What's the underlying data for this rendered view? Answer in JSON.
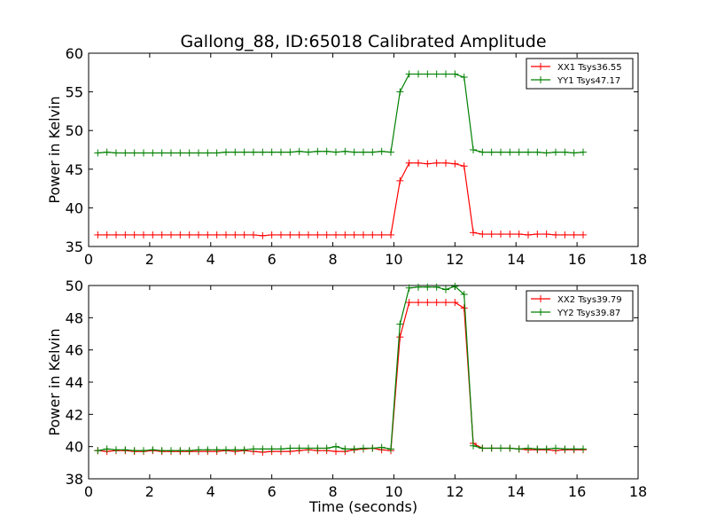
{
  "figure": {
    "title": "Gallong_88, ID:65018 Calibrated Amplitude"
  },
  "colors": {
    "red": "#ff0000",
    "green": "#008000",
    "axes": "#000000"
  },
  "chart_data": [
    {
      "type": "line",
      "title": "Gallong_88, ID:65018 Calibrated Amplitude",
      "xlabel": "",
      "ylabel": "Power in Kelvin",
      "xlim": [
        0,
        18
      ],
      "ylim": [
        35,
        60
      ],
      "xticks": [
        0,
        2,
        4,
        6,
        8,
        10,
        12,
        14,
        16,
        18
      ],
      "yticks": [
        35,
        40,
        45,
        50,
        55,
        60
      ],
      "legend": "top-right",
      "grid": false,
      "x": [
        0.3,
        0.6,
        0.9,
        1.2,
        1.5,
        1.8,
        2.1,
        2.4,
        2.7,
        3.0,
        3.3,
        3.6,
        3.9,
        4.2,
        4.5,
        4.8,
        5.1,
        5.4,
        5.7,
        6.0,
        6.3,
        6.6,
        6.9,
        7.2,
        7.5,
        7.8,
        8.1,
        8.4,
        8.7,
        9.0,
        9.3,
        9.6,
        9.9,
        10.2,
        10.5,
        10.8,
        11.1,
        11.4,
        11.7,
        12.0,
        12.3,
        12.6,
        12.9,
        13.2,
        13.5,
        13.8,
        14.1,
        14.4,
        14.7,
        15.0,
        15.3,
        15.6,
        15.9,
        16.2
      ],
      "series": [
        {
          "name": "XX1 Tsys36.55",
          "color": "#ff0000",
          "values": [
            36.5,
            36.5,
            36.5,
            36.5,
            36.5,
            36.5,
            36.5,
            36.5,
            36.5,
            36.5,
            36.5,
            36.5,
            36.5,
            36.5,
            36.5,
            36.5,
            36.5,
            36.5,
            36.4,
            36.5,
            36.5,
            36.5,
            36.5,
            36.5,
            36.5,
            36.5,
            36.5,
            36.5,
            36.5,
            36.5,
            36.5,
            36.5,
            36.5,
            43.5,
            45.8,
            45.8,
            45.7,
            45.8,
            45.8,
            45.7,
            45.4,
            36.8,
            36.6,
            36.6,
            36.6,
            36.6,
            36.6,
            36.5,
            36.6,
            36.6,
            36.5,
            36.5,
            36.5,
            36.5
          ]
        },
        {
          "name": "YY1 Tsys47.17",
          "color": "#008000",
          "values": [
            47.1,
            47.2,
            47.1,
            47.1,
            47.1,
            47.1,
            47.1,
            47.1,
            47.1,
            47.1,
            47.1,
            47.1,
            47.1,
            47.1,
            47.2,
            47.2,
            47.2,
            47.2,
            47.2,
            47.2,
            47.2,
            47.2,
            47.3,
            47.2,
            47.3,
            47.3,
            47.2,
            47.3,
            47.2,
            47.2,
            47.2,
            47.3,
            47.2,
            55.0,
            57.3,
            57.3,
            57.3,
            57.3,
            57.3,
            57.3,
            56.9,
            47.5,
            47.2,
            47.2,
            47.2,
            47.2,
            47.2,
            47.2,
            47.2,
            47.1,
            47.2,
            47.2,
            47.1,
            47.2
          ]
        }
      ]
    },
    {
      "type": "line",
      "title": "",
      "xlabel": "Time (seconds)",
      "ylabel": "Power in Kelvin",
      "xlim": [
        0,
        18
      ],
      "ylim": [
        38,
        50
      ],
      "xticks": [
        0,
        2,
        4,
        6,
        8,
        10,
        12,
        14,
        16,
        18
      ],
      "yticks": [
        38,
        40,
        42,
        44,
        46,
        48,
        50
      ],
      "legend": "top-right",
      "grid": false,
      "x": [
        0.3,
        0.6,
        0.9,
        1.2,
        1.5,
        1.8,
        2.1,
        2.4,
        2.7,
        3.0,
        3.3,
        3.6,
        3.9,
        4.2,
        4.5,
        4.8,
        5.1,
        5.4,
        5.7,
        6.0,
        6.3,
        6.6,
        6.9,
        7.2,
        7.5,
        7.8,
        8.1,
        8.4,
        8.7,
        9.0,
        9.3,
        9.6,
        9.9,
        10.2,
        10.5,
        10.8,
        11.1,
        11.4,
        11.7,
        12.0,
        12.3,
        12.6,
        12.9,
        13.2,
        13.5,
        13.8,
        14.1,
        14.4,
        14.7,
        15.0,
        15.3,
        15.6,
        15.9,
        16.2
      ],
      "series": [
        {
          "name": "XX2 Tsys39.79",
          "color": "#ff0000",
          "values": [
            39.75,
            39.7,
            39.75,
            39.75,
            39.7,
            39.7,
            39.75,
            39.7,
            39.7,
            39.7,
            39.7,
            39.7,
            39.7,
            39.7,
            39.75,
            39.7,
            39.75,
            39.7,
            39.65,
            39.7,
            39.7,
            39.7,
            39.75,
            39.8,
            39.75,
            39.75,
            39.7,
            39.7,
            39.8,
            39.85,
            39.9,
            39.8,
            39.75,
            46.8,
            48.95,
            48.95,
            48.95,
            48.95,
            48.95,
            48.95,
            48.6,
            40.2,
            39.9,
            39.9,
            39.9,
            39.9,
            39.85,
            39.8,
            39.8,
            39.8,
            39.75,
            39.8,
            39.8,
            39.8
          ]
        },
        {
          "name": "YY2 Tsys39.87",
          "color": "#008000",
          "values": [
            39.75,
            39.85,
            39.8,
            39.8,
            39.75,
            39.75,
            39.8,
            39.75,
            39.75,
            39.75,
            39.75,
            39.8,
            39.8,
            39.8,
            39.8,
            39.8,
            39.8,
            39.85,
            39.85,
            39.85,
            39.85,
            39.9,
            39.9,
            39.9,
            39.9,
            39.9,
            40.0,
            39.85,
            39.85,
            39.9,
            39.9,
            39.95,
            39.85,
            47.6,
            49.85,
            49.9,
            49.9,
            49.9,
            49.75,
            49.95,
            49.45,
            40.05,
            39.9,
            39.9,
            39.9,
            39.9,
            39.85,
            39.9,
            39.85,
            39.85,
            39.9,
            39.85,
            39.85,
            39.85
          ]
        }
      ]
    }
  ]
}
